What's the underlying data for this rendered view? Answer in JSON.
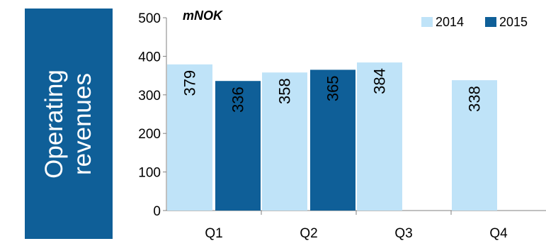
{
  "side_title": [
    "Operating",
    "revenues"
  ],
  "chart_data": {
    "type": "bar",
    "unit_label": "mNOK",
    "categories": [
      "Q1",
      "Q2",
      "Q3",
      "Q4"
    ],
    "series": [
      {
        "name": "2014",
        "color": "#bfe3f8",
        "values": [
          379,
          358,
          384,
          338
        ]
      },
      {
        "name": "2015",
        "color": "#0f5f98",
        "values": [
          336,
          365,
          null,
          null
        ]
      }
    ],
    "ylim": [
      0,
      500
    ],
    "yticks": [
      0,
      100,
      200,
      300,
      400,
      500
    ],
    "legend_position": "top-right",
    "grid": false
  }
}
